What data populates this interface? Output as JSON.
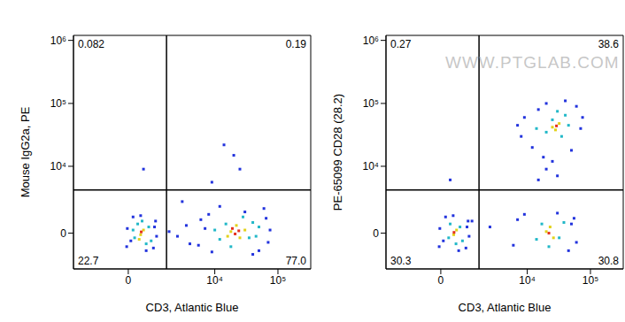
{
  "chart_data": [
    {
      "type": "scatter",
      "x_label": "CD3, Atlantic Blue",
      "y_label": "Mouse IgG2a, PE",
      "log": true,
      "xlim": [
        -3100,
        330000
      ],
      "ylim": [
        -3000,
        1200000
      ],
      "xticks": [
        0,
        {
          "value": 10000,
          "label": "10⁴"
        },
        {
          "value": 100000,
          "label": "10⁵"
        }
      ],
      "yticks": [
        0,
        {
          "value": 10000,
          "label": "10⁴"
        },
        {
          "value": 100000,
          "label": "10⁵"
        },
        {
          "value": 1000000,
          "label": "10⁶"
        }
      ],
      "gates": {
        "x": 1620,
        "y": 4070
      },
      "quadrant_labels": {
        "upper_left": {
          "value": 0.082,
          "label": "0.082"
        },
        "upper_right": {
          "value": 0.19,
          "label": "0.19"
        },
        "lower_left": {
          "value": 22.7,
          "label": "22.7"
        },
        "lower_right": {
          "value": 77.0,
          "label": "77.0"
        }
      },
      "series": [
        {
          "color": "#2233dd",
          "values": [
            [
              -50,
              -900
            ],
            [
              1000,
              800
            ],
            [
              150,
              1100
            ],
            [
              900,
              -1000
            ],
            [
              -30,
              300
            ],
            [
              1050,
              -200
            ],
            [
              400,
              1200
            ],
            [
              600,
              -1200
            ],
            [
              80,
              -500
            ],
            [
              950,
              400
            ],
            [
              5500,
              -800
            ],
            [
              6000,
              900
            ],
            [
              70000,
              -600
            ],
            [
              65000,
              1000
            ],
            [
              8000,
              1300
            ],
            [
              50000,
              -1200
            ],
            [
              9000,
              -1300
            ],
            [
              30000,
              1500
            ],
            [
              60000,
              1800
            ],
            [
              7000,
              300
            ],
            [
              75000,
              200
            ],
            [
              12000,
              2000
            ],
            [
              40000,
              -1500
            ],
            [
              2500,
              -200
            ],
            [
              3500,
              500
            ],
            [
              1800,
              100
            ],
            [
              4000,
              -700
            ],
            [
              20000,
              15000
            ],
            [
              14000,
              22000
            ],
            [
              25000,
              9000
            ],
            [
              9000,
              5500
            ],
            [
              500,
              9000
            ],
            [
              3000,
              2500
            ]
          ]
        },
        {
          "color": "#22b8c8",
          "values": [
            [
              200,
              -300
            ],
            [
              700,
              400
            ],
            [
              300,
              600
            ],
            [
              800,
              -500
            ],
            [
              150,
              200
            ],
            [
              600,
              -700
            ],
            [
              450,
              800
            ],
            [
              12000,
              -400
            ],
            [
              15000,
              600
            ],
            [
              35000,
              -300
            ],
            [
              40000,
              700
            ],
            [
              18000,
              -900
            ],
            [
              28000,
              1100
            ],
            [
              45000,
              -200
            ],
            [
              10000,
              200
            ],
            [
              50000,
              400
            ]
          ]
        },
        {
          "color": "#e2d21a",
          "values": [
            [
              400,
              -100
            ],
            [
              500,
              200
            ],
            [
              350,
              -400
            ],
            [
              18000,
              100
            ],
            [
              25000,
              -300
            ],
            [
              22000,
              500
            ],
            [
              30000,
              200
            ],
            [
              16000,
              -200
            ]
          ]
        },
        {
          "color": "#e5301c",
          "values": [
            [
              420,
              80
            ],
            [
              21000,
              -50
            ],
            [
              24000,
              150
            ],
            [
              19000,
              300
            ]
          ]
        }
      ]
    },
    {
      "type": "scatter",
      "x_label": "CD3, Atlantic Blue",
      "y_label": "PE-65099 CD28 (28.2)",
      "log": true,
      "xlim": [
        -3100,
        330000
      ],
      "ylim": [
        -3000,
        1200000
      ],
      "xticks": [
        0,
        {
          "value": 10000,
          "label": "10⁴"
        },
        {
          "value": 100000,
          "label": "10⁵"
        }
      ],
      "yticks": [
        0,
        {
          "value": 10000,
          "label": "10⁴"
        },
        {
          "value": 100000,
          "label": "10⁵"
        },
        {
          "value": 1000000,
          "label": "10⁶"
        }
      ],
      "gates": {
        "x": 1620,
        "y": 4070
      },
      "quadrant_labels": {
        "upper_left": {
          "value": 0.27,
          "label": "0.27"
        },
        "upper_right": {
          "value": 38.6,
          "label": "38.6"
        },
        "lower_left": {
          "value": 30.3,
          "label": "30.3"
        },
        "lower_right": {
          "value": 30.8,
          "label": "30.8"
        }
      },
      "annotations": [
        "WWW.PTGLAB.COM"
      ],
      "series": [
        {
          "color": "#2233dd",
          "values": [
            [
              -50,
              -900
            ],
            [
              1000,
              800
            ],
            [
              150,
              1100
            ],
            [
              900,
              -1000
            ],
            [
              -30,
              300
            ],
            [
              1050,
              -200
            ],
            [
              400,
              1200
            ],
            [
              600,
              -1200
            ],
            [
              80,
              -500
            ],
            [
              950,
              400
            ],
            [
              6000,
              -800
            ],
            [
              7000,
              900
            ],
            [
              60000,
              -600
            ],
            [
              55000,
              1000
            ],
            [
              9000,
              1300
            ],
            [
              45000,
              -1200
            ],
            [
              30000,
              1400
            ],
            [
              50000,
              600
            ],
            [
              8000,
              30000
            ],
            [
              9000,
              60000
            ],
            [
              70000,
              40000
            ],
            [
              60000,
              90000
            ],
            [
              12000,
              20000
            ],
            [
              50000,
              18000
            ],
            [
              20000,
              100000
            ],
            [
              40000,
              110000
            ],
            [
              75000,
              60000
            ],
            [
              15000,
              80000
            ],
            [
              7000,
              45000
            ],
            [
              15000,
              6000
            ],
            [
              20000,
              9000
            ],
            [
              25000,
              12000
            ],
            [
              30000,
              7000
            ],
            [
              18000,
              14000
            ],
            [
              1200,
              800
            ],
            [
              300,
              6000
            ],
            [
              2500,
              400
            ]
          ]
        },
        {
          "color": "#22b8c8",
          "values": [
            [
              250,
              -300
            ],
            [
              650,
              400
            ],
            [
              300,
              600
            ],
            [
              750,
              -500
            ],
            [
              500,
              -700
            ],
            [
              14000,
              -400
            ],
            [
              17000,
              600
            ],
            [
              32000,
              -300
            ],
            [
              38000,
              700
            ],
            [
              22000,
              -900
            ],
            [
              14000,
              40000
            ],
            [
              25000,
              55000
            ],
            [
              35000,
              30000
            ],
            [
              40000,
              65000
            ],
            [
              20000,
              35000
            ],
            [
              30000,
              75000
            ],
            [
              45000,
              45000
            ]
          ]
        },
        {
          "color": "#e2d21a",
          "values": [
            [
              420,
              -100
            ],
            [
              520,
              200
            ],
            [
              20000,
              100
            ],
            [
              26000,
              -300
            ],
            [
              23000,
              400
            ],
            [
              25000,
              42000
            ],
            [
              32000,
              48000
            ],
            [
              28000,
              38000
            ]
          ]
        },
        {
          "color": "#e5301c",
          "values": [
            [
              430,
              50
            ],
            [
              22000,
              0
            ],
            [
              29000,
              44000
            ]
          ]
        }
      ]
    }
  ]
}
